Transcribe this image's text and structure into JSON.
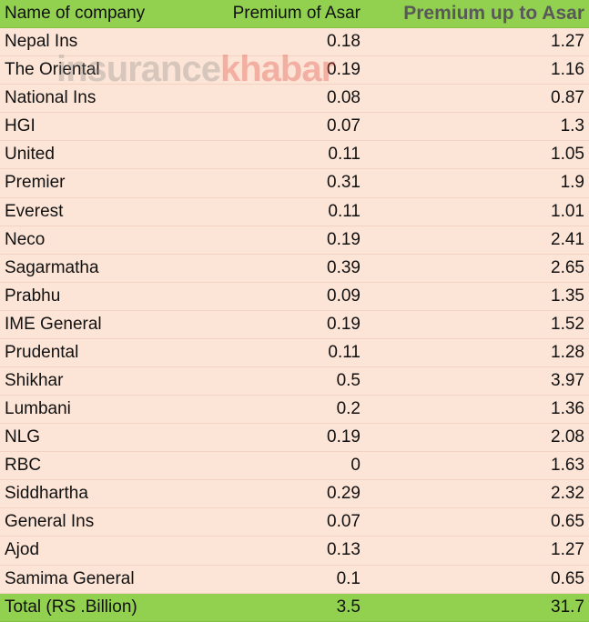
{
  "watermark": {
    "first": "insurance",
    "second": "khabar"
  },
  "table": {
    "header": [
      "Name of company",
      "Premium of Asar",
      "Premium up to Asar"
    ],
    "rows": [
      [
        "Nepal Ins",
        "0.18",
        "1.27"
      ],
      [
        "The Oriental",
        "0.19",
        "1.16"
      ],
      [
        "National Ins",
        "0.08",
        "0.87"
      ],
      [
        "HGI",
        "0.07",
        "1.3"
      ],
      [
        "United",
        "0.11",
        "1.05"
      ],
      [
        "Premier",
        "0.31",
        "1.9"
      ],
      [
        "Everest",
        "0.11",
        "1.01"
      ],
      [
        "Neco",
        "0.19",
        "2.41"
      ],
      [
        "Sagarmatha",
        "0.39",
        "2.65"
      ],
      [
        "Prabhu",
        "0.09",
        "1.35"
      ],
      [
        "IME General",
        "0.19",
        "1.52"
      ],
      [
        "Prudental",
        "0.11",
        "1.28"
      ],
      [
        "Shikhar",
        "0.5",
        "3.97"
      ],
      [
        "Lumbani",
        "0.2",
        "1.36"
      ],
      [
        "NLG",
        "0.19",
        "2.08"
      ],
      [
        "RBC",
        "0",
        "1.63"
      ],
      [
        "Siddhartha",
        "0.29",
        "2.32"
      ],
      [
        "General Ins",
        "0.07",
        "0.65"
      ],
      [
        "Ajod",
        "0.13",
        "1.27"
      ],
      [
        "Samima General",
        "0.1",
        "0.65"
      ]
    ],
    "total": [
      "Total (RS .Billion)",
      "3.5",
      "31.7"
    ]
  }
}
